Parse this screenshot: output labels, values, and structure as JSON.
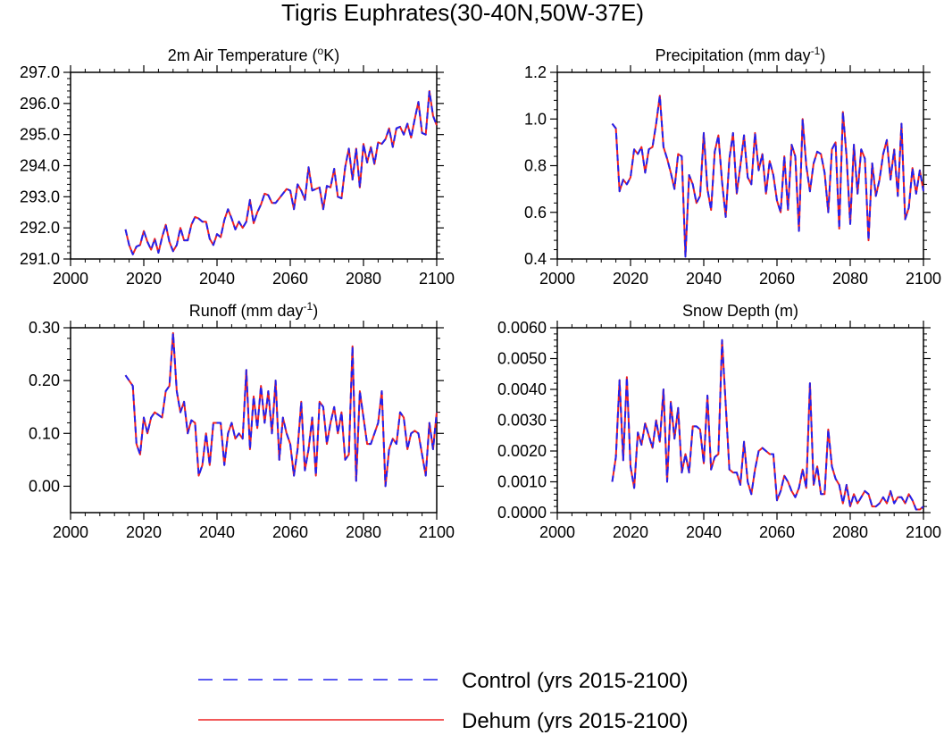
{
  "figure": {
    "title": "Tigris Euphrates(30-40N,50W-37E)",
    "colors": {
      "control": "#2222ee",
      "dehum": "#ee2222",
      "axis": "#000000"
    }
  },
  "legend": [
    {
      "label": "Control (yrs 2015-2100)",
      "style": "dashed",
      "color": "#2222ee"
    },
    {
      "label": "Dehum (yrs 2015-2100)",
      "style": "solid",
      "color": "#ee2222"
    }
  ],
  "panels": [
    {
      "id": "temperature",
      "title": "2m Air Temperature (",
      "title_sup": "o",
      "title_tail": "K)",
      "xlim": [
        2000,
        2100
      ],
      "xticks": [
        "2000",
        "2020",
        "2040",
        "2060",
        "2080",
        "2100"
      ],
      "ylim": [
        291.0,
        297.0
      ],
      "yticks": [
        "291.0",
        "292.0",
        "293.0",
        "294.0",
        "295.0",
        "296.0",
        "297.0"
      ]
    },
    {
      "id": "precipitation",
      "title": "Precipitation (mm day",
      "title_sup": "-1",
      "title_tail": ")",
      "xlim": [
        2000,
        2100
      ],
      "xticks": [
        "2000",
        "2020",
        "2040",
        "2060",
        "2080",
        "2100"
      ],
      "ylim": [
        0.4,
        1.2
      ],
      "yticks": [
        "0.4",
        "0.6",
        "0.8",
        "1.0",
        "1.2"
      ]
    },
    {
      "id": "runoff",
      "title": "Runoff (mm day",
      "title_sup": "-1",
      "title_tail": ")",
      "xlim": [
        2000,
        2100
      ],
      "xticks": [
        "2000",
        "2020",
        "2040",
        "2060",
        "2080",
        "2100"
      ],
      "ylim": [
        -0.05,
        0.3
      ],
      "yticks": [
        "0.00",
        "0.10",
        "0.20",
        "0.30"
      ]
    },
    {
      "id": "snow",
      "title": "Snow Depth (m)",
      "title_sup": "",
      "title_tail": "",
      "xlim": [
        2000,
        2100
      ],
      "xticks": [
        "2000",
        "2020",
        "2040",
        "2060",
        "2080",
        "2100"
      ],
      "ylim": [
        0.0,
        0.006
      ],
      "yticks": [
        "0.0000",
        "0.0010",
        "0.0020",
        "0.0030",
        "0.0040",
        "0.0050",
        "0.0060"
      ]
    }
  ],
  "chart_data": [
    {
      "type": "line",
      "title": "2m Air Temperature (oK)",
      "x_start": 2015,
      "x_step": 1,
      "ylim": [
        291.0,
        297.0
      ],
      "series": [
        {
          "name": "Control (yrs 2015-2100)",
          "values": [
            291.95,
            291.45,
            291.15,
            291.4,
            291.45,
            291.9,
            291.55,
            291.3,
            291.65,
            291.2,
            291.7,
            292.1,
            291.55,
            291.25,
            291.45,
            292.0,
            291.6,
            291.6,
            292.1,
            292.35,
            292.3,
            292.2,
            292.2,
            291.65,
            291.45,
            291.8,
            291.7,
            292.25,
            292.6,
            292.3,
            291.95,
            292.2,
            292.0,
            292.2,
            292.9,
            292.15,
            292.5,
            292.75,
            293.1,
            293.05,
            292.8,
            292.8,
            292.95,
            293.1,
            293.25,
            293.2,
            292.6,
            293.4,
            293.2,
            292.9,
            293.95,
            293.2,
            293.25,
            293.3,
            292.6,
            293.35,
            293.3,
            293.9,
            293.0,
            292.95,
            293.95,
            294.55,
            293.55,
            294.55,
            293.3,
            294.7,
            294.1,
            294.6,
            294.05,
            294.75,
            294.7,
            294.85,
            295.2,
            294.6,
            295.2,
            295.25,
            295.0,
            295.35,
            294.9,
            295.5,
            296.05,
            295.05,
            295.0,
            296.4,
            295.6,
            295.3
          ]
        },
        {
          "name": "Dehum (yrs 2015-2100)",
          "values": [
            291.95,
            291.45,
            291.15,
            291.4,
            291.45,
            291.9,
            291.55,
            291.3,
            291.65,
            291.2,
            291.7,
            292.1,
            291.55,
            291.25,
            291.45,
            292.0,
            291.6,
            291.6,
            292.1,
            292.35,
            292.3,
            292.2,
            292.2,
            291.65,
            291.45,
            291.8,
            291.7,
            292.25,
            292.6,
            292.3,
            291.95,
            292.2,
            292.0,
            292.2,
            292.9,
            292.15,
            292.5,
            292.75,
            293.1,
            293.05,
            292.8,
            292.8,
            292.95,
            293.1,
            293.25,
            293.2,
            292.6,
            293.4,
            293.2,
            292.9,
            293.95,
            293.2,
            293.25,
            293.3,
            292.6,
            293.35,
            293.3,
            293.9,
            293.0,
            292.95,
            293.95,
            294.55,
            293.55,
            294.55,
            293.3,
            294.7,
            294.1,
            294.6,
            294.05,
            294.75,
            294.7,
            294.85,
            295.2,
            294.6,
            295.2,
            295.25,
            295.0,
            295.35,
            294.9,
            295.5,
            296.05,
            295.05,
            295.0,
            296.4,
            295.6,
            295.3
          ]
        }
      ]
    },
    {
      "type": "line",
      "title": "Precipitation (mm day-1)",
      "x_start": 2015,
      "x_step": 1,
      "ylim": [
        0.4,
        1.2
      ],
      "series": [
        {
          "name": "Control (yrs 2015-2100)",
          "values": [
            0.98,
            0.96,
            0.69,
            0.74,
            0.72,
            0.75,
            0.87,
            0.85,
            0.88,
            0.77,
            0.87,
            0.88,
            0.98,
            1.1,
            0.88,
            0.83,
            0.77,
            0.7,
            0.85,
            0.84,
            0.41,
            0.76,
            0.72,
            0.64,
            0.67,
            0.94,
            0.7,
            0.61,
            0.86,
            0.93,
            0.73,
            0.58,
            0.83,
            0.94,
            0.68,
            0.8,
            0.93,
            0.75,
            0.72,
            0.94,
            0.78,
            0.85,
            0.68,
            0.82,
            0.76,
            0.65,
            0.6,
            0.84,
            0.61,
            0.89,
            0.84,
            0.52,
            1.0,
            0.8,
            0.69,
            0.81,
            0.86,
            0.85,
            0.77,
            0.6,
            0.87,
            0.9,
            0.53,
            1.03,
            0.84,
            0.55,
            0.89,
            0.68,
            0.87,
            0.83,
            0.48,
            0.81,
            0.67,
            0.74,
            0.85,
            0.91,
            0.74,
            0.87,
            0.67,
            0.98,
            0.57,
            0.62,
            0.79,
            0.68,
            0.78,
            0.69
          ]
        },
        {
          "name": "Dehum (yrs 2015-2100)",
          "values": [
            0.98,
            0.96,
            0.69,
            0.74,
            0.72,
            0.75,
            0.87,
            0.85,
            0.88,
            0.77,
            0.87,
            0.88,
            0.98,
            1.1,
            0.88,
            0.83,
            0.77,
            0.7,
            0.85,
            0.84,
            0.41,
            0.76,
            0.72,
            0.64,
            0.67,
            0.94,
            0.7,
            0.61,
            0.86,
            0.93,
            0.73,
            0.58,
            0.83,
            0.94,
            0.68,
            0.8,
            0.93,
            0.75,
            0.72,
            0.94,
            0.78,
            0.85,
            0.68,
            0.82,
            0.76,
            0.65,
            0.6,
            0.84,
            0.61,
            0.89,
            0.84,
            0.52,
            1.0,
            0.8,
            0.69,
            0.81,
            0.86,
            0.85,
            0.77,
            0.6,
            0.87,
            0.9,
            0.53,
            1.03,
            0.84,
            0.55,
            0.89,
            0.68,
            0.87,
            0.83,
            0.48,
            0.81,
            0.67,
            0.74,
            0.85,
            0.91,
            0.74,
            0.87,
            0.67,
            0.98,
            0.57,
            0.62,
            0.79,
            0.68,
            0.78,
            0.69
          ]
        }
      ]
    },
    {
      "type": "line",
      "title": "Runoff (mm day-1)",
      "x_start": 2015,
      "x_step": 1,
      "ylim": [
        -0.05,
        0.3
      ],
      "series": [
        {
          "name": "Control (yrs 2015-2100)",
          "values": [
            0.21,
            0.2,
            0.19,
            0.08,
            0.06,
            0.13,
            0.1,
            0.13,
            0.14,
            0.135,
            0.13,
            0.18,
            0.19,
            0.29,
            0.18,
            0.14,
            0.16,
            0.1,
            0.125,
            0.12,
            0.02,
            0.04,
            0.1,
            0.04,
            0.12,
            0.12,
            0.12,
            0.04,
            0.1,
            0.12,
            0.09,
            0.1,
            0.09,
            0.22,
            0.07,
            0.17,
            0.11,
            0.19,
            0.12,
            0.18,
            0.1,
            0.2,
            0.05,
            0.13,
            0.1,
            0.08,
            0.02,
            0.07,
            0.16,
            0.03,
            0.07,
            0.13,
            0.02,
            0.16,
            0.15,
            0.08,
            0.12,
            0.15,
            0.1,
            0.14,
            0.05,
            0.06,
            0.265,
            0.01,
            0.18,
            0.13,
            0.08,
            0.08,
            0.1,
            0.12,
            0.18,
            0.0,
            0.07,
            0.09,
            0.08,
            0.14,
            0.13,
            0.07,
            0.1,
            0.105,
            0.1,
            0.06,
            0.02,
            0.12,
            0.07,
            0.14
          ]
        },
        {
          "name": "Dehum (yrs 2015-2100)",
          "values": [
            0.21,
            0.2,
            0.19,
            0.08,
            0.06,
            0.13,
            0.1,
            0.13,
            0.14,
            0.135,
            0.13,
            0.18,
            0.19,
            0.29,
            0.18,
            0.14,
            0.16,
            0.1,
            0.125,
            0.12,
            0.02,
            0.04,
            0.1,
            0.04,
            0.12,
            0.12,
            0.12,
            0.04,
            0.1,
            0.12,
            0.09,
            0.1,
            0.09,
            0.22,
            0.07,
            0.17,
            0.11,
            0.19,
            0.12,
            0.18,
            0.1,
            0.2,
            0.05,
            0.13,
            0.1,
            0.08,
            0.02,
            0.07,
            0.16,
            0.03,
            0.07,
            0.13,
            0.02,
            0.16,
            0.15,
            0.08,
            0.12,
            0.15,
            0.1,
            0.14,
            0.05,
            0.06,
            0.265,
            0.01,
            0.18,
            0.13,
            0.08,
            0.08,
            0.1,
            0.12,
            0.18,
            0.0,
            0.07,
            0.09,
            0.08,
            0.14,
            0.13,
            0.07,
            0.1,
            0.105,
            0.1,
            0.06,
            0.02,
            0.12,
            0.07,
            0.14
          ]
        }
      ]
    },
    {
      "type": "line",
      "title": "Snow Depth (m)",
      "x_start": 2015,
      "x_step": 1,
      "ylim": [
        0.0,
        0.006
      ],
      "series": [
        {
          "name": "Control (yrs 2015-2100)",
          "values": [
            0.001,
            0.0018,
            0.0043,
            0.0017,
            0.0044,
            0.0015,
            0.0008,
            0.0026,
            0.0022,
            0.0029,
            0.0025,
            0.0021,
            0.003,
            0.0023,
            0.004,
            0.001,
            0.0036,
            0.0024,
            0.0034,
            0.0013,
            0.0019,
            0.0013,
            0.0028,
            0.0028,
            0.0027,
            0.0016,
            0.0038,
            0.0014,
            0.0018,
            0.0019,
            0.0056,
            0.0035,
            0.0014,
            0.0013,
            0.0013,
            0.0009,
            0.0023,
            0.001,
            0.0006,
            0.0014,
            0.002,
            0.0021,
            0.002,
            0.0019,
            0.0019,
            0.0004,
            0.0007,
            0.0012,
            0.001,
            0.0007,
            0.0005,
            0.0008,
            0.0014,
            0.0008,
            0.0042,
            0.0009,
            0.0015,
            0.0006,
            0.0006,
            0.0027,
            0.0015,
            0.0011,
            0.0009,
            0.0003,
            0.0009,
            0.0002,
            0.0006,
            0.0003,
            0.0005,
            0.0007,
            0.0006,
            0.0002,
            0.0002,
            0.0003,
            0.0005,
            0.0003,
            0.0007,
            0.0003,
            0.0005,
            0.0005,
            0.0003,
            0.0006,
            0.0004,
            0.0001,
            0.0001,
            0.0002
          ]
        },
        {
          "name": "Dehum (yrs 2015-2100)",
          "values": [
            0.001,
            0.0018,
            0.0043,
            0.0017,
            0.0044,
            0.0015,
            0.0008,
            0.0026,
            0.0022,
            0.0029,
            0.0025,
            0.0021,
            0.003,
            0.0023,
            0.004,
            0.001,
            0.0036,
            0.0024,
            0.0034,
            0.0013,
            0.0019,
            0.0013,
            0.0028,
            0.0028,
            0.0027,
            0.0016,
            0.0038,
            0.0014,
            0.0018,
            0.0019,
            0.0056,
            0.0035,
            0.0014,
            0.0013,
            0.0013,
            0.0009,
            0.0023,
            0.001,
            0.0006,
            0.0014,
            0.002,
            0.0021,
            0.002,
            0.0019,
            0.0019,
            0.0004,
            0.0007,
            0.0012,
            0.001,
            0.0007,
            0.0005,
            0.0008,
            0.0014,
            0.0008,
            0.0042,
            0.0009,
            0.0015,
            0.0006,
            0.0006,
            0.0027,
            0.0015,
            0.0011,
            0.0009,
            0.0003,
            0.0009,
            0.0002,
            0.0006,
            0.0003,
            0.0005,
            0.0007,
            0.0006,
            0.0002,
            0.0002,
            0.0003,
            0.0005,
            0.0003,
            0.0007,
            0.0003,
            0.0005,
            0.0005,
            0.0003,
            0.0006,
            0.0004,
            0.0001,
            0.0001,
            0.0002
          ]
        }
      ]
    }
  ]
}
